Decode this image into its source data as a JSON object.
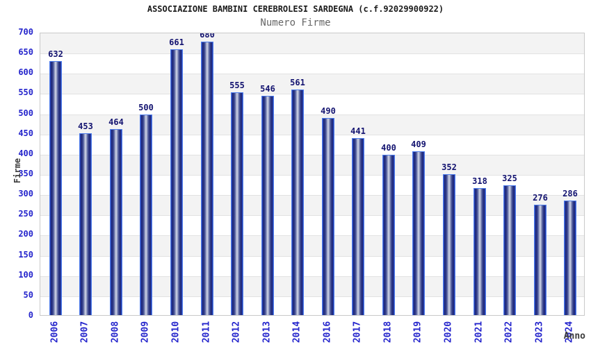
{
  "chart_data": {
    "type": "bar",
    "title": "ASSOCIAZIONE BAMBINI CEREBROLESI SARDEGNA (c.f.92029900922)",
    "subtitle": "Numero Firme",
    "xlabel": "Anno",
    "ylabel": "Firme",
    "categories": [
      "2006",
      "2007",
      "2008",
      "2009",
      "2010",
      "2011",
      "2012",
      "2013",
      "2014",
      "2016",
      "2017",
      "2018",
      "2019",
      "2020",
      "2021",
      "2022",
      "2023",
      "2024"
    ],
    "values": [
      632,
      453,
      464,
      500,
      661,
      680,
      555,
      546,
      561,
      490,
      441,
      400,
      409,
      352,
      318,
      325,
      276,
      286
    ],
    "ylim": [
      0,
      700
    ],
    "ytick_step": 50,
    "ytick_labels": [
      "0",
      "50",
      "100",
      "150",
      "200",
      "250",
      "300",
      "350",
      "400",
      "450",
      "500",
      "550",
      "600",
      "650",
      "700"
    ],
    "grid": "horizontal-alternating-bands",
    "legend": "none",
    "colors": {
      "title_color": "#1a1a1a",
      "subtitle_color": "#666666",
      "axis_text": "#2424cc",
      "value_label": "#131370",
      "axis_title_color": "#3c3c3c",
      "bar_border": "#4d7ceb",
      "bar_dark": "#1a2376",
      "bar_mid": "#3050c8",
      "bar_light": "#d6daec",
      "band_gray": "#f3f3f3",
      "band_white": "#ffffff",
      "gridline": "#e2e2e2",
      "plot_border": "#c9c9c9"
    }
  }
}
